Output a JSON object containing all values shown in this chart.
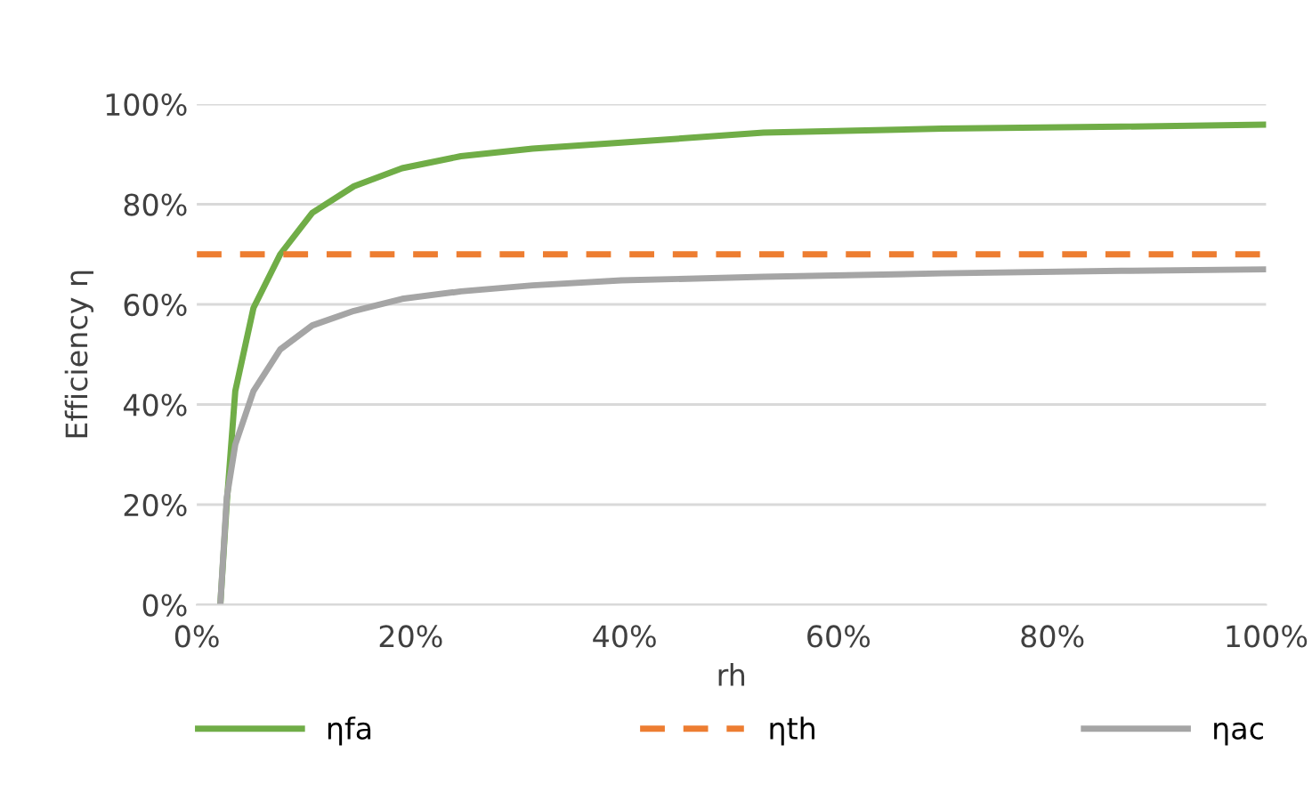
{
  "chart_data": {
    "type": "line",
    "xlabel": "rh",
    "ylabel": "Efficiency η",
    "series": [
      {
        "name": "ηfa",
        "color": "#70ad47",
        "line_style": "solid",
        "x": [
          2.2,
          2.8,
          3.6,
          5.3,
          7.8,
          10.8,
          14.7,
          19.2,
          24.7,
          31.4,
          39.7,
          53,
          69.7,
          86.4,
          100
        ],
        "values": [
          0,
          20.2,
          42.7,
          59.3,
          70,
          78.3,
          83.6,
          87.2,
          89.6,
          91.1,
          92.3,
          94.3,
          95.1,
          95.5,
          95.9
        ]
      },
      {
        "name": "ηth",
        "color": "#ed7d31",
        "line_style": "dashed",
        "x": [
          0,
          100
        ],
        "values": [
          70,
          70
        ]
      },
      {
        "name": "ηac",
        "color": "#a5a5a5",
        "line_style": "solid",
        "x": [
          2.2,
          2.8,
          3.6,
          5.3,
          7.8,
          10.8,
          14.7,
          19.2,
          24.7,
          31.4,
          39.7,
          53,
          69.7,
          86.4,
          100
        ],
        "values": [
          0,
          21.4,
          32,
          42.7,
          51,
          55.8,
          58.7,
          61.1,
          62.6,
          63.8,
          64.8,
          65.5,
          66.2,
          66.7,
          67
        ]
      }
    ],
    "xlim": [
      0,
      100
    ],
    "ylim": [
      0,
      100
    ],
    "xticks": [
      {
        "value": 0,
        "label": "0%"
      },
      {
        "value": 20,
        "label": "20%"
      },
      {
        "value": 40,
        "label": "40%"
      },
      {
        "value": 60,
        "label": "60%"
      },
      {
        "value": 80,
        "label": "80%"
      },
      {
        "value": 100,
        "label": "100%"
      }
    ],
    "yticks": [
      {
        "value": 0,
        "label": "0%"
      },
      {
        "value": 20,
        "label": "20%"
      },
      {
        "value": 40,
        "label": "40%"
      },
      {
        "value": 60,
        "label": "60%"
      },
      {
        "value": 80,
        "label": "80%"
      },
      {
        "value": 100,
        "label": "100%"
      }
    ],
    "grid": "y",
    "legend": "bottom"
  }
}
